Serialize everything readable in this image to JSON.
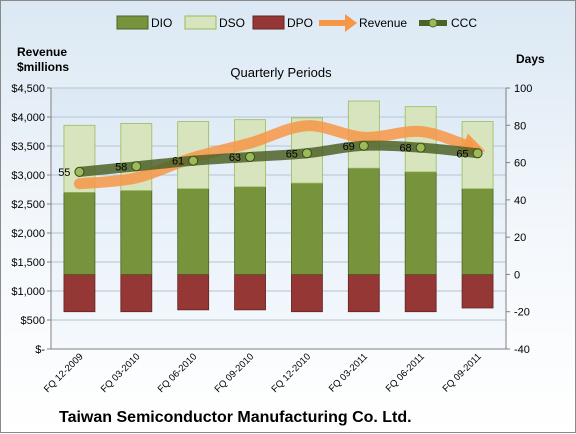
{
  "chart_data": {
    "type": "bar",
    "title": "Quarterly Periods",
    "company": "Taiwan Semiconductor Manufacturing Co. Ltd.",
    "ylabel_left": [
      "Revenue",
      "$millions"
    ],
    "ylabel_right": "Days",
    "categories": [
      "FQ 12-2009",
      "FQ 03-2010",
      "FQ 06-2010",
      "FQ 09-2010",
      "FQ 12-2010",
      "FQ 03-2011",
      "FQ 06-2011",
      "FQ 09-2011"
    ],
    "left_axis": {
      "ylim": [
        0,
        4500
      ],
      "ticks": [
        0,
        500,
        1000,
        1500,
        2000,
        2500,
        3000,
        3500,
        4000,
        4500
      ],
      "tick_labels": [
        "$-",
        "$500",
        "$1,000",
        "$1,500",
        "$2,000",
        "$2,500",
        "$3,000",
        "$3,500",
        "$4,000",
        "$4,500"
      ]
    },
    "right_axis": {
      "ylim": [
        -40,
        100
      ],
      "ticks": [
        -40,
        -20,
        0,
        20,
        40,
        60,
        80,
        100
      ]
    },
    "legend_position": "top",
    "series": [
      {
        "name": "DIO",
        "type": "stacked-bar",
        "axis": "right",
        "color": "#77933c",
        "values": [
          44,
          45,
          46,
          47,
          49,
          57,
          55,
          46
        ]
      },
      {
        "name": "DSO",
        "type": "stacked-bar",
        "axis": "right",
        "color": "#d7e4bd",
        "values": [
          36,
          36,
          36,
          36,
          35,
          36,
          35,
          36
        ]
      },
      {
        "name": "DPO",
        "type": "stacked-bar-negative",
        "axis": "right",
        "color": "#953735",
        "values": [
          -20,
          -20,
          -19,
          -19,
          -20,
          -20,
          -20,
          -18
        ]
      },
      {
        "name": "Revenue",
        "type": "line",
        "axis": "left",
        "color": "#f79646",
        "values": [
          2850,
          2950,
          3300,
          3550,
          3850,
          3650,
          3750,
          3450
        ]
      },
      {
        "name": "CCC",
        "type": "line",
        "axis": "right",
        "color": "#4f6228",
        "values": [
          55,
          58,
          61,
          63,
          65,
          69,
          68,
          65
        ],
        "data_labels": [
          "55",
          "58",
          "61",
          "63",
          "65",
          "69",
          "68",
          "65"
        ]
      }
    ]
  }
}
